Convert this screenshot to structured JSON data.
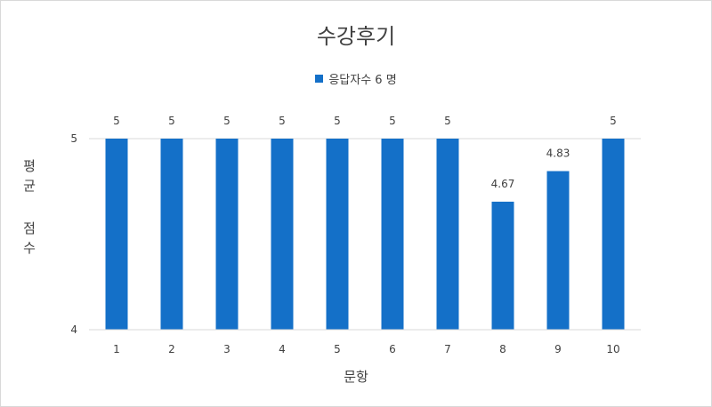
{
  "chart_data": {
    "type": "bar",
    "title": "수강후기",
    "xlabel": "문항",
    "ylabel": "평균 점수",
    "categories": [
      "1",
      "2",
      "3",
      "4",
      "5",
      "6",
      "7",
      "8",
      "9",
      "10"
    ],
    "series": [
      {
        "name": "응답자수 6 명",
        "color": "#1470c8",
        "values": [
          5,
          5,
          5,
          5,
          5,
          5,
          5,
          4.67,
          4.83,
          5
        ],
        "labels": [
          "5",
          "5",
          "5",
          "5",
          "5",
          "5",
          "5",
          "4.67",
          "4.83",
          "5"
        ]
      }
    ],
    "ylim": [
      4,
      5
    ],
    "yticks": [
      4,
      5
    ],
    "grid": true,
    "legend": "top"
  }
}
